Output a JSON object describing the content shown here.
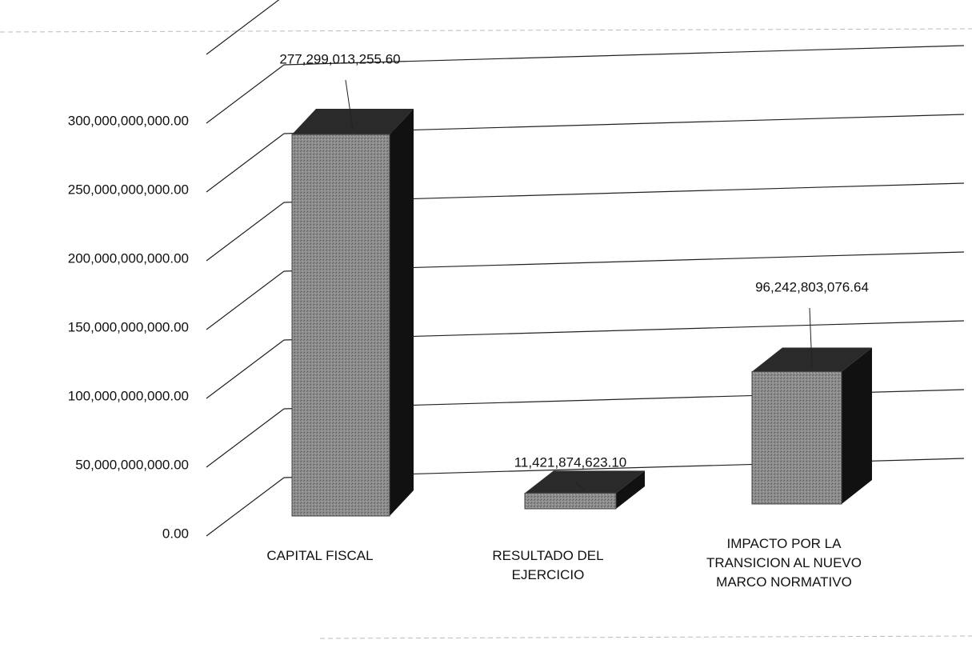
{
  "chart_data": {
    "type": "bar3d",
    "categories": [
      "CAPITAL FISCAL",
      "RESULTADO DEL EJERCICIO",
      "IMPACTO POR LA TRANSICION AL NUEVO MARCO NORMATIVO"
    ],
    "values": [
      277299013255.6,
      11421874623.1,
      96242803076.64
    ],
    "value_labels": [
      "277,299,013,255.60",
      "11,421,874,623.10",
      "96,242,803,076.64"
    ],
    "color": "#8c8c8c",
    "ylim": [
      0,
      350000000000
    ],
    "yticks": [
      {
        "value": 0,
        "label": "0.00"
      },
      {
        "value": 50000000000,
        "label": "50,000,000,000.00"
      },
      {
        "value": 100000000000,
        "label": "100,000,000,000.00"
      },
      {
        "value": 150000000000,
        "label": "150,000,000,000.00"
      },
      {
        "value": 200000000000,
        "label": "200,000,000,000.00"
      },
      {
        "value": 250000000000,
        "label": "250,000,000,000.00"
      },
      {
        "value": 300000000000,
        "label": "300,000,000,000.00"
      }
    ],
    "grid": true
  }
}
